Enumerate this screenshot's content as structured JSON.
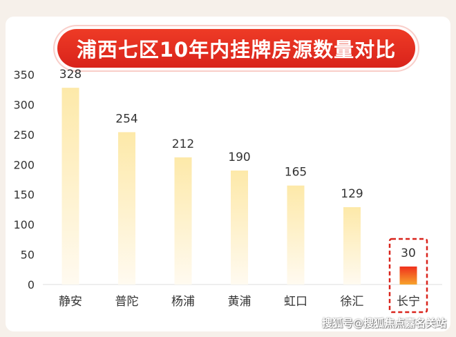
{
  "title": "浦西七区10年内挂牌房源数量对比",
  "watermark": "搜狐号@搜狐焦点嘉名关站",
  "colors": {
    "title_bg": "#e12a1f",
    "bar_top": "#fde9a9",
    "bar_bottom": "#fffaf0",
    "highlight_top": "#f0301c",
    "highlight_bottom": "#f7a32c",
    "highlight_border": "#d9231b"
  },
  "chart_data": {
    "type": "bar",
    "title": "浦西七区10年内挂牌房源数量对比",
    "categories": [
      "静安",
      "普陀",
      "杨浦",
      "黄浦",
      "虹口",
      "徐汇",
      "长宁"
    ],
    "values": [
      328,
      254,
      212,
      190,
      165,
      129,
      30
    ],
    "data_labels": [
      "328",
      "254",
      "212",
      "190",
      "165",
      "129",
      "30"
    ],
    "highlighted": "长宁",
    "ylim": [
      0,
      350
    ],
    "yticks": [
      "0",
      "50",
      "100",
      "150",
      "200",
      "250",
      "300",
      "350"
    ],
    "grid": false,
    "legend": "none"
  }
}
